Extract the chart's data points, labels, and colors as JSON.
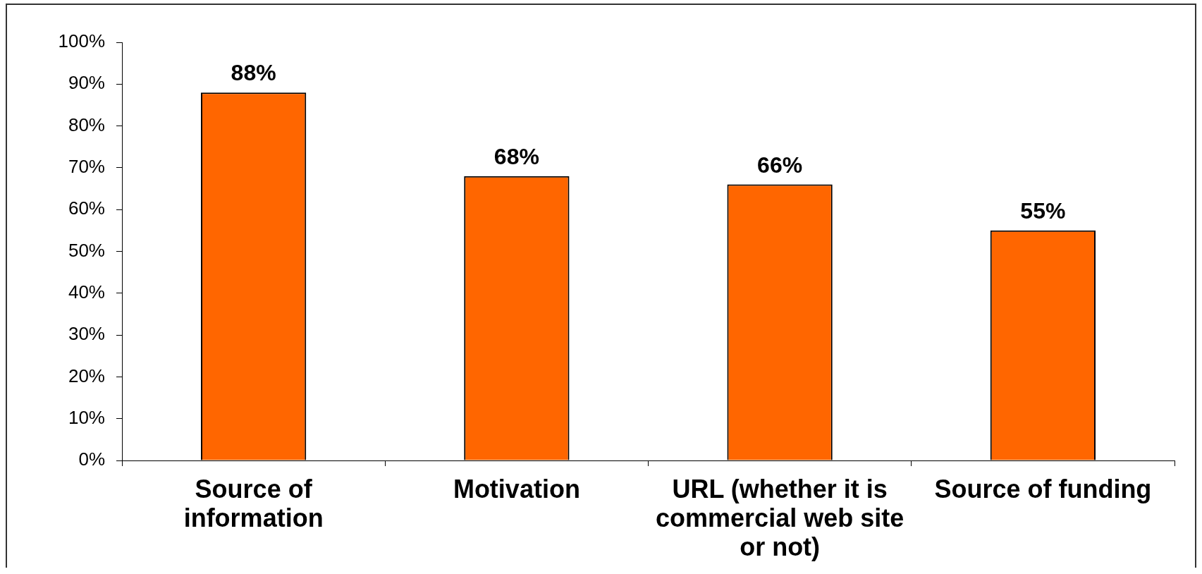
{
  "chart_data": {
    "type": "bar",
    "categories": [
      "Source of information",
      "Motivation",
      "URL (whether it is commercial web site or not)",
      "Source of funding"
    ],
    "values": [
      88,
      68,
      66,
      55
    ],
    "color": "#ff6600",
    "value_labels": [
      "88%",
      "68%",
      "66%",
      "55%"
    ],
    "ylim": [
      0,
      100
    ],
    "yticks": [
      {
        "value": 0,
        "label": "0%"
      },
      {
        "value": 10,
        "label": "10%"
      },
      {
        "value": 20,
        "label": "20%"
      },
      {
        "value": 30,
        "label": "30%"
      },
      {
        "value": 40,
        "label": "40%"
      },
      {
        "value": 50,
        "label": "50%"
      },
      {
        "value": 60,
        "label": "60%"
      },
      {
        "value": 70,
        "label": "70%"
      },
      {
        "value": 80,
        "label": "80%"
      },
      {
        "value": 90,
        "label": "90%"
      },
      {
        "value": 100,
        "label": "100%"
      }
    ],
    "legend": false
  }
}
